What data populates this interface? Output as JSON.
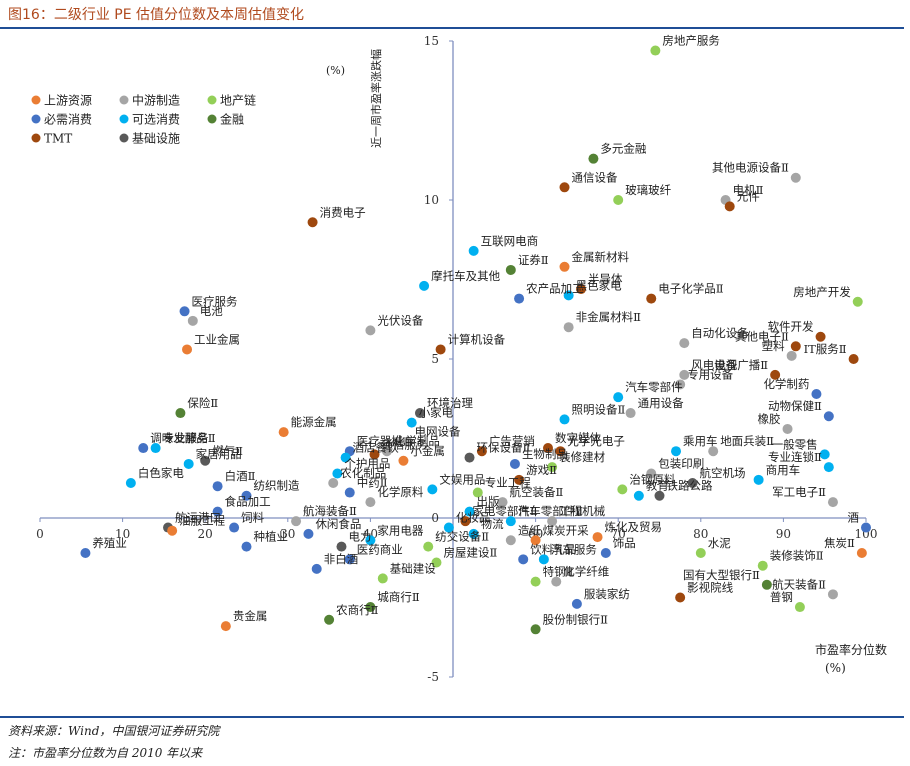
{
  "figure": {
    "title": "图16：二级行业 PE 估值分位数及本周估值变化",
    "source": "资料来源：Wind，中国银河证券研究院",
    "note": "注：市盈率分位数为自 2010 年以来"
  },
  "colors": {
    "rule": "#1f4e96",
    "title": "#b04a1e"
  },
  "chart_data": {
    "type": "scatter",
    "xlabel": "市盈率分位数",
    "xunit": "(%)",
    "ylabel": "近一周市盈率涨跌幅",
    "yunit": "(%)",
    "xlim": [
      0,
      100
    ],
    "ylim": [
      -5,
      15
    ],
    "xticks": [
      0,
      10,
      20,
      30,
      40,
      50,
      60,
      70,
      80,
      90,
      100
    ],
    "yticks": [
      -5,
      0,
      5,
      10,
      15
    ],
    "grid": false,
    "legend_position": "top-left",
    "series": [
      {
        "name": "上游资源",
        "color": "#ea7d34"
      },
      {
        "name": "中游制造",
        "color": "#a5a5a5"
      },
      {
        "name": "地产链",
        "color": "#93cf58"
      },
      {
        "name": "必需消费",
        "color": "#4472c4"
      },
      {
        "name": "可选消费",
        "color": "#00b0f0"
      },
      {
        "name": "金融",
        "color": "#548235"
      },
      {
        "name": "TMT",
        "color": "#9e480e"
      },
      {
        "name": "基础设施",
        "color": "#595959"
      }
    ],
    "points": [
      {
        "label": "房地产服务",
        "series": "地产链",
        "x": 74.5,
        "y": 14.7
      },
      {
        "label": "多元金融",
        "series": "金融",
        "x": 67,
        "y": 11.3
      },
      {
        "label": "其他电源设备Ⅱ",
        "series": "中游制造",
        "x": 91.5,
        "y": 10.7
      },
      {
        "label": "通信设备",
        "series": "TMT",
        "x": 63.5,
        "y": 10.4
      },
      {
        "label": "电机Ⅱ",
        "series": "中游制造",
        "x": 83,
        "y": 10
      },
      {
        "label": "元件",
        "series": "TMT",
        "x": 83.5,
        "y": 9.8
      },
      {
        "label": "玻璃玻纤",
        "series": "地产链",
        "x": 70,
        "y": 10
      },
      {
        "label": "消费电子",
        "series": "TMT",
        "x": 33,
        "y": 9.3
      },
      {
        "label": "互联网电商",
        "series": "可选消费",
        "x": 52.5,
        "y": 8.4
      },
      {
        "label": "证券Ⅱ",
        "series": "金融",
        "x": 57,
        "y": 7.8
      },
      {
        "label": "金属新材料",
        "series": "上游资源",
        "x": 63.5,
        "y": 7.9
      },
      {
        "label": "摩托车及其他",
        "series": "可选消费",
        "x": 46.5,
        "y": 7.3
      },
      {
        "label": "半导体",
        "series": "TMT",
        "x": 65.5,
        "y": 7.2
      },
      {
        "label": "黑色家电",
        "series": "可选消费",
        "x": 64,
        "y": 7
      },
      {
        "label": "农产品加工",
        "series": "必需消费",
        "x": 58,
        "y": 6.9
      },
      {
        "label": "电子化学品Ⅱ",
        "series": "TMT",
        "x": 74,
        "y": 6.9
      },
      {
        "label": "房地产开发",
        "series": "地产链",
        "x": 99,
        "y": 6.8
      },
      {
        "label": "医疗服务",
        "series": "必需消费",
        "x": 17.5,
        "y": 6.5
      },
      {
        "label": "电池",
        "series": "中游制造",
        "x": 18.5,
        "y": 6.2
      },
      {
        "label": "非金属材料Ⅱ",
        "series": "中游制造",
        "x": 64,
        "y": 6
      },
      {
        "label": "光伏设备",
        "series": "中游制造",
        "x": 40,
        "y": 5.9
      },
      {
        "label": "软件开发",
        "series": "TMT",
        "x": 94.5,
        "y": 5.7
      },
      {
        "label": "自动化设备",
        "series": "中游制造",
        "x": 78,
        "y": 5.5
      },
      {
        "label": "其他电子Ⅱ",
        "series": "TMT",
        "x": 91.5,
        "y": 5.4
      },
      {
        "label": "计算机设备",
        "series": "TMT",
        "x": 48.5,
        "y": 5.3
      },
      {
        "label": "工业金属",
        "series": "上游资源",
        "x": 17.8,
        "y": 5.3
      },
      {
        "label": "IT服务Ⅱ",
        "series": "TMT",
        "x": 98.5,
        "y": 5
      },
      {
        "label": "塑料",
        "series": "中游制造",
        "x": 91,
        "y": 5.1
      },
      {
        "label": "专用设备",
        "series": "中游制造",
        "x": 77.5,
        "y": 4.2
      },
      {
        "label": "风电设备",
        "series": "中游制造",
        "x": 78,
        "y": 4.5
      },
      {
        "label": "电视广播Ⅱ",
        "series": "TMT",
        "x": 89,
        "y": 4.5
      },
      {
        "label": "汽车零部件",
        "series": "可选消费",
        "x": 70,
        "y": 3.8
      },
      {
        "label": "化学制药",
        "series": "必需消费",
        "x": 94,
        "y": 3.9
      },
      {
        "label": "通用设备",
        "series": "中游制造",
        "x": 71.5,
        "y": 3.3
      },
      {
        "label": "环境治理",
        "series": "基础设施",
        "x": 46,
        "y": 3.3
      },
      {
        "label": "保险Ⅱ",
        "series": "金融",
        "x": 17,
        "y": 3.3
      },
      {
        "label": "照明设备Ⅱ",
        "series": "可选消费",
        "x": 63.5,
        "y": 3.1
      },
      {
        "label": "动物保健Ⅱ",
        "series": "必需消费",
        "x": 95.5,
        "y": 3.2
      },
      {
        "label": "能源金属",
        "series": "上游资源",
        "x": 29.5,
        "y": 2.7
      },
      {
        "label": "小家电",
        "series": "可选消费",
        "x": 45,
        "y": 3
      },
      {
        "label": "橡胶",
        "series": "中游制造",
        "x": 90.5,
        "y": 2.8
      },
      {
        "label": "电网设备",
        "series": "中游制造",
        "x": 44.5,
        "y": 2.4
      },
      {
        "label": "化学制品",
        "series": "中游制造",
        "x": 42,
        "y": 2.1
      },
      {
        "label": "医疗器械",
        "series": "必需消费",
        "x": 37.5,
        "y": 2.1
      },
      {
        "label": "专业服务",
        "series": "可选消费",
        "x": 14,
        "y": 2.2
      },
      {
        "label": "调味发酵品Ⅱ",
        "series": "必需消费",
        "x": 12.5,
        "y": 2.2
      },
      {
        "label": "数字媒体",
        "series": "TMT",
        "x": 61.5,
        "y": 2.2
      },
      {
        "label": "光学光电子",
        "series": "TMT",
        "x": 63,
        "y": 2.1
      },
      {
        "label": "乘用车",
        "series": "可选消费",
        "x": 77,
        "y": 2.1
      },
      {
        "label": "地面兵装Ⅱ",
        "series": "中游制造",
        "x": 81.5,
        "y": 2.1
      },
      {
        "label": "一般零售",
        "series": "可选消费",
        "x": 95,
        "y": 2
      },
      {
        "label": "广告营销",
        "series": "TMT",
        "x": 53.5,
        "y": 2.1
      },
      {
        "label": "环保设备Ⅱ",
        "series": "基础设施",
        "x": 52,
        "y": 1.9
      },
      {
        "label": "通信服务",
        "series": "TMT",
        "x": 40.5,
        "y": 2
      },
      {
        "label": "酒店餐饮",
        "series": "可选消费",
        "x": 37,
        "y": 1.9
      },
      {
        "label": "燃气Ⅱ",
        "series": "基础设施",
        "x": 20,
        "y": 1.8
      },
      {
        "label": "生物制品",
        "series": "必需消费",
        "x": 57.5,
        "y": 1.7
      },
      {
        "label": "小金属",
        "series": "上游资源",
        "x": 44,
        "y": 1.8
      },
      {
        "label": "家居用品",
        "series": "可选消费",
        "x": 18,
        "y": 1.7
      },
      {
        "label": "装修建材",
        "series": "地产链",
        "x": 62,
        "y": 1.6
      },
      {
        "label": "包装印刷",
        "series": "中游制造",
        "x": 74,
        "y": 1.4
      },
      {
        "label": "专业连锁Ⅱ",
        "series": "可选消费",
        "x": 95.5,
        "y": 1.6
      },
      {
        "label": "个护用品",
        "series": "可选消费",
        "x": 36,
        "y": 1.4
      },
      {
        "label": "游戏Ⅱ",
        "series": "TMT",
        "x": 58,
        "y": 1.2
      },
      {
        "label": "航空机场",
        "series": "基础设施",
        "x": 79,
        "y": 1.1
      },
      {
        "label": "商用车",
        "series": "可选消费",
        "x": 87,
        "y": 1.2
      },
      {
        "label": "农化制品",
        "series": "中游制造",
        "x": 35.5,
        "y": 1.1
      },
      {
        "label": "白酒Ⅱ",
        "series": "必需消费",
        "x": 21.5,
        "y": 1
      },
      {
        "label": "白色家电",
        "series": "可选消费",
        "x": 11,
        "y": 1.1
      },
      {
        "label": "文娱用品",
        "series": "可选消费",
        "x": 47.5,
        "y": 0.9
      },
      {
        "label": "治钢原料",
        "series": "地产链",
        "x": 70.5,
        "y": 0.9
      },
      {
        "label": "中药Ⅱ",
        "series": "必需消费",
        "x": 37.5,
        "y": 0.8
      },
      {
        "label": "纺织制造",
        "series": "必需消费",
        "x": 25,
        "y": 0.7
      },
      {
        "label": "专业工程",
        "series": "地产链",
        "x": 53,
        "y": 0.8
      },
      {
        "label": "教育",
        "series": "可选消费",
        "x": 72.5,
        "y": 0.7
      },
      {
        "label": "铁路公路",
        "series": "基础设施",
        "x": 75,
        "y": 0.7
      },
      {
        "label": "化学原料",
        "series": "中游制造",
        "x": 40,
        "y": 0.5
      },
      {
        "label": "航空装备Ⅱ",
        "series": "中游制造",
        "x": 56,
        "y": 0.5
      },
      {
        "label": "军工电子Ⅱ",
        "series": "中游制造",
        "x": 96,
        "y": 0.5
      },
      {
        "label": "食品加工",
        "series": "必需消费",
        "x": 21.5,
        "y": 0.2
      },
      {
        "label": "出版",
        "series": "可选消费",
        "x": 52,
        "y": 0.2
      },
      {
        "label": "航海装备Ⅱ",
        "series": "中游制造",
        "x": 31,
        "y": -0.1
      },
      {
        "label": "汽车零部件Ⅱ",
        "series": "可选消费",
        "x": 57,
        "y": -0.1
      },
      {
        "label": "工程机械",
        "series": "中游制造",
        "x": 62,
        "y": -0.1
      },
      {
        "label": "航运港口",
        "series": "基础设施",
        "x": 15.5,
        "y": -0.3
      },
      {
        "label": "饲料",
        "series": "必需消费",
        "x": 23.5,
        "y": -0.3
      },
      {
        "label": "家电零部件Ⅱ",
        "series": "TMT",
        "x": 51.5,
        "y": -0.1
      },
      {
        "label": "化妆品",
        "series": "可选消费",
        "x": 49.5,
        "y": -0.3
      },
      {
        "label": "酒",
        "series": "必需消费",
        "x": 100,
        "y": -0.3
      },
      {
        "label": "休闲食品",
        "series": "必需消费",
        "x": 32.5,
        "y": -0.5
      },
      {
        "label": "物流",
        "series": "可选消费",
        "x": 52.5,
        "y": -0.5
      },
      {
        "label": "油服工程",
        "series": "上游资源",
        "x": 16,
        "y": -0.4
      },
      {
        "label": "家用电器",
        "series": "可选消费",
        "x": 40,
        "y": -0.7
      },
      {
        "label": "造纸",
        "series": "中游制造",
        "x": 57,
        "y": -0.7
      },
      {
        "label": "煤炭开采",
        "series": "上游资源",
        "x": 60,
        "y": -0.7
      },
      {
        "label": "炼化及贸易",
        "series": "上游资源",
        "x": 67.5,
        "y": -0.6
      },
      {
        "label": "种植业",
        "series": "必需消费",
        "x": 25,
        "y": -0.9
      },
      {
        "label": "电力",
        "series": "基础设施",
        "x": 36.5,
        "y": -0.9
      },
      {
        "label": "纺交设备Ⅱ",
        "series": "地产链",
        "x": 47,
        "y": -0.9
      },
      {
        "label": "饰品",
        "series": "必需消费",
        "x": 68.5,
        "y": -1.1
      },
      {
        "label": "水泥",
        "series": "地产链",
        "x": 80,
        "y": -1.1
      },
      {
        "label": "焦炭Ⅱ",
        "series": "上游资源",
        "x": 99.5,
        "y": -1.1
      },
      {
        "label": "养殖业",
        "series": "必需消费",
        "x": 5.5,
        "y": -1.1
      },
      {
        "label": "医药商业",
        "series": "必需消费",
        "x": 37.5,
        "y": -1.3
      },
      {
        "label": "房屋建设Ⅱ",
        "series": "地产链",
        "x": 48,
        "y": -1.4
      },
      {
        "label": "饮料乳品",
        "series": "必需消费",
        "x": 58.5,
        "y": -1.3
      },
      {
        "label": "汽车服务",
        "series": "可选消费",
        "x": 61,
        "y": -1.3
      },
      {
        "label": "非白酒",
        "series": "必需消费",
        "x": 33.5,
        "y": -1.6
      },
      {
        "label": "装修装饰Ⅱ",
        "series": "地产链",
        "x": 87.5,
        "y": -1.5
      },
      {
        "label": "基础建设",
        "series": "地产链",
        "x": 41.5,
        "y": -1.9
      },
      {
        "label": "特钢Ⅱ",
        "series": "地产链",
        "x": 60,
        "y": -2
      },
      {
        "label": "化学纤维",
        "series": "中游制造",
        "x": 62.5,
        "y": -2
      },
      {
        "label": "国有大型银行Ⅱ",
        "series": "金融",
        "x": 88,
        "y": -2.1
      },
      {
        "label": "影视院线",
        "series": "TMT",
        "x": 77.5,
        "y": -2.5
      },
      {
        "label": "服装家纺",
        "series": "必需消费",
        "x": 65,
        "y": -2.7
      },
      {
        "label": "航天装备Ⅱ",
        "series": "中游制造",
        "x": 96,
        "y": -2.4
      },
      {
        "label": "普钢",
        "series": "地产链",
        "x": 92,
        "y": -2.8
      },
      {
        "label": "城商行Ⅱ",
        "series": "金融",
        "x": 40,
        "y": -2.8
      },
      {
        "label": "农商行Ⅱ",
        "series": "金融",
        "x": 35,
        "y": -3.2
      },
      {
        "label": "股份制银行Ⅱ",
        "series": "金融",
        "x": 60,
        "y": -3.5
      },
      {
        "label": "贵金属",
        "series": "上游资源",
        "x": 22.5,
        "y": -3.4
      }
    ]
  }
}
